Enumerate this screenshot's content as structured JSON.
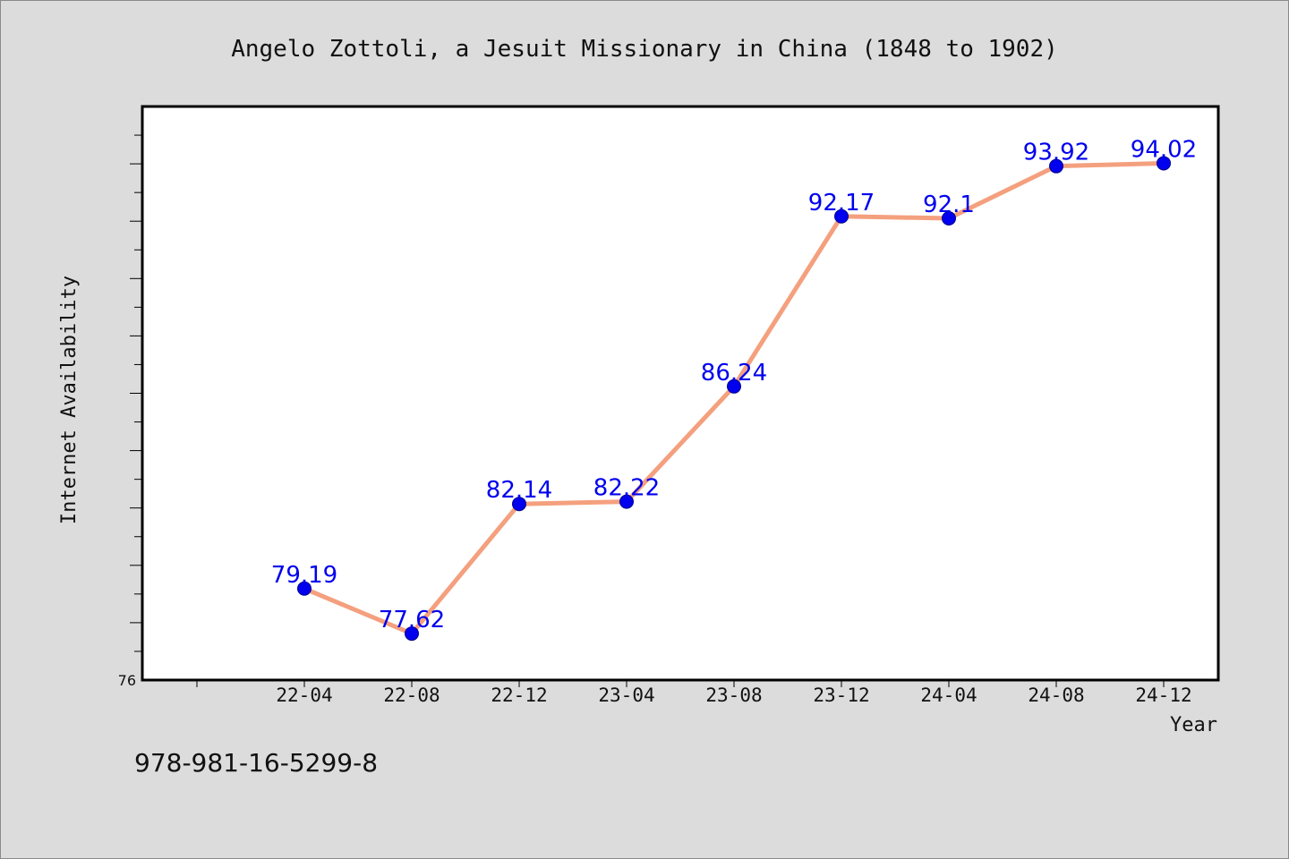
{
  "chart_data": {
    "type": "line",
    "title": "Angelo Zottoli, a Jesuit Missionary in China (1848 to 1902)",
    "xlabel": "Year",
    "ylabel": "Internet Availability",
    "categories": [
      "22-04",
      "22-08",
      "22-12",
      "23-04",
      "23-08",
      "23-12",
      "24-04",
      "24-08",
      "24-12"
    ],
    "series": [
      {
        "values": [
          79.19,
          77.62,
          82.14,
          82.22,
          86.24,
          92.17,
          92.1,
          93.92,
          94.02
        ]
      }
    ],
    "data_labels": [
      "79.19",
      "77.62",
      "82.14",
      "82.22",
      "86.24",
      "92.17",
      "92.1",
      "93.92",
      "94.02"
    ],
    "ylim": [
      76,
      96
    ],
    "y_tick_labels": [
      "76"
    ],
    "grid": false,
    "colors": {
      "line": "#f4a07e",
      "marker": "#0000ee",
      "label": "#0000ee",
      "background": "#dcdcdc",
      "plot_background": "#ffffff"
    }
  },
  "footer": {
    "isbn": "978-981-16-5299-8"
  }
}
